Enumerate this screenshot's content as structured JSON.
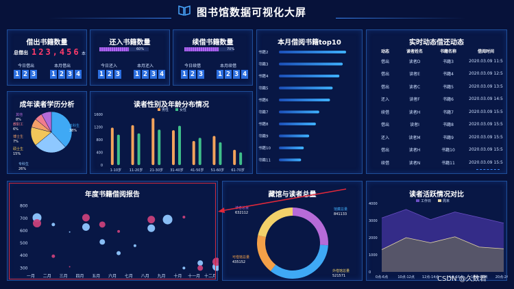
{
  "page_title": "图书馆数据可视化大屏",
  "colors": {
    "bg": "#07123a",
    "panel_border": "#1f4f9a",
    "accent": "#2c6fe0",
    "red": "#ff3b6b"
  },
  "borrow": {
    "title": "借出书籍数量",
    "total_label": "总借出",
    "total_value": "123,456",
    "total_unit": "本",
    "today_label": "今日借出",
    "month_label": "本月借出",
    "today_digits": [
      "1",
      "2",
      "3"
    ],
    "month_digits": [
      "1",
      "2",
      "3",
      "4"
    ]
  },
  "returned": {
    "title": "还入书籍数量",
    "progress_pct": 60,
    "progress_label": "60%",
    "today_label": "今日还入",
    "month_label": "本月还入",
    "today_digits": [
      "1",
      "2",
      "3"
    ],
    "month_digits": [
      "1",
      "2",
      "3",
      "4"
    ]
  },
  "renew": {
    "title": "续借书籍数量",
    "progress_pct": 70,
    "progress_label": "70%",
    "today_label": "今日续借",
    "month_label": "本月续借",
    "today_digits": [
      "1",
      "2",
      "3"
    ],
    "month_digits": [
      "1",
      "2",
      "3",
      "4"
    ]
  },
  "live": {
    "title": "实时动态借还动态",
    "headers": [
      "动态",
      "读者姓名",
      "书籍名称",
      "借阅时间"
    ],
    "rows": [
      [
        "借出",
        "读者D",
        "书籍3",
        "2020.03.09 11:5"
      ],
      [
        "借出",
        "读者E",
        "书籍4",
        "2020.03.09 12:5"
      ],
      [
        "借出",
        "读者C",
        "书籍5",
        "2020.03.09 13:5"
      ],
      [
        "还入",
        "读者F",
        "书籍6",
        "2020.03.09 14:5"
      ],
      [
        "续借",
        "读者H",
        "书籍7",
        "2020.03.09 15:5"
      ],
      [
        "借出",
        "读者I",
        "书籍8",
        "2020.03.09 15:5"
      ],
      [
        "还入",
        "读者M",
        "书籍9",
        "2020.03.09 15:5"
      ],
      [
        "借出",
        "读者H",
        "书籍10",
        "2020.03.09 15:5"
      ],
      [
        "续借",
        "读者N",
        "书籍11",
        "2020.03.09 15:5"
      ]
    ]
  },
  "watermark": "CSDN @久数君",
  "chart_data": [
    {
      "id": "top10",
      "type": "bar",
      "orientation": "horizontal",
      "title": "本月借阅书籍top10",
      "categories": [
        "书籍2",
        "书籍3",
        "书籍4",
        "书籍5",
        "书籍6",
        "书籍7",
        "书籍8",
        "书籍9",
        "书籍10",
        "书籍11"
      ],
      "values": [
        100,
        95,
        90,
        80,
        76,
        60,
        55,
        45,
        37,
        33
      ],
      "xlim": [
        0,
        100
      ]
    },
    {
      "id": "education",
      "type": "pie",
      "title": "成年读者学历分析",
      "labels": [
        "本科生",
        "专科生",
        "硕士生",
        "博士生",
        "教职工",
        "其他"
      ],
      "percent_labels": [
        "38%",
        "26%",
        "15%",
        "7%",
        "6%",
        "8%"
      ],
      "values": [
        38,
        26,
        15,
        7,
        6,
        8
      ],
      "colors": [
        "#3fa9f5",
        "#8ec8ff",
        "#f2c65a",
        "#f3a069",
        "#f07c8e",
        "#b66bd8"
      ]
    },
    {
      "id": "gender_age",
      "type": "bar",
      "title": "读者性别及年龄分布情况",
      "categories": [
        "1-10岁",
        "11-20岁",
        "21-30岁",
        "31-40岁",
        "41-50岁",
        "51-60岁",
        "61-70岁"
      ],
      "series": [
        {
          "name": "男性",
          "color": "#f2a35c",
          "values": [
            1180,
            1260,
            1480,
            1100,
            760,
            920,
            480
          ]
        },
        {
          "name": "女性",
          "color": "#3fbf8a",
          "values": [
            960,
            1000,
            1120,
            1240,
            860,
            720,
            400
          ]
        }
      ],
      "yticks": [
        0,
        400,
        800,
        1200,
        1600
      ],
      "ylim": [
        0,
        1600
      ]
    },
    {
      "id": "annual",
      "type": "scatter",
      "title": "年度书籍借阅报告",
      "categories": [
        "一月",
        "二月",
        "三月",
        "四月",
        "五月",
        "六月",
        "七月",
        "八月",
        "九月",
        "十月",
        "十一月",
        "十二月"
      ],
      "yticks": [
        300,
        400,
        500,
        600,
        700,
        800
      ],
      "ylim": [
        280,
        820
      ],
      "series": [
        {
          "name": "blue",
          "color": "#8fc6ff",
          "points": [
            [
              0,
              705,
              13
            ],
            [
              1,
              650,
              5
            ],
            [
              2,
              590,
              2
            ],
            [
              3,
              630,
              11
            ],
            [
              4,
              510,
              8
            ],
            [
              5,
              420,
              6
            ],
            [
              6,
              480,
              4
            ],
            [
              7,
              620,
              11
            ],
            [
              8,
              690,
              14
            ],
            [
              9,
              300,
              4
            ],
            [
              10,
              340,
              8
            ],
            [
              11,
              310,
              12
            ]
          ]
        },
        {
          "name": "pink",
          "color": "#c8407a",
          "points": [
            [
              0,
              660,
              12
            ],
            [
              1,
              395,
              5
            ],
            [
              2,
              310,
              2
            ],
            [
              3,
              705,
              11
            ],
            [
              4,
              650,
              9
            ],
            [
              5,
              595,
              4
            ],
            [
              7,
              690,
              11
            ],
            [
              9,
              710,
              4
            ],
            [
              10,
              300,
              8
            ],
            [
              11,
              350,
              12
            ]
          ]
        }
      ]
    },
    {
      "id": "collection",
      "type": "pie",
      "variant": "donut",
      "title": "藏馆与读者总量",
      "labels": [
        "读者总量",
        "馆藏总量",
        "可借馆总量",
        "外借馆总量"
      ],
      "values": [
        632112,
        841133,
        435152,
        521571
      ],
      "value_labels": [
        "632112",
        "841133",
        "435152",
        "521571"
      ],
      "colors": [
        "#b66bd8",
        "#3fa9f5",
        "#f3a048",
        "#f2d16a"
      ]
    },
    {
      "id": "activity",
      "type": "area",
      "title": "读者活跃情况对比",
      "categories": [
        "0点-6点",
        "10点-12点",
        "12点-14点",
        "14点-16点",
        "16点-20点",
        "20点-24点"
      ],
      "yticks": [
        0,
        1000,
        2000,
        3000,
        4000
      ],
      "ylim": [
        0,
        4000
      ],
      "series": [
        {
          "name": "工作日",
          "color": "#6b4fc4",
          "values": [
            3150,
            3650,
            3050,
            3500,
            3180,
            2850
          ]
        },
        {
          "name": "周末",
          "color": "#e8d9a8",
          "values": [
            1300,
            2000,
            1700,
            2050,
            1450,
            1350
          ]
        }
      ]
    }
  ]
}
